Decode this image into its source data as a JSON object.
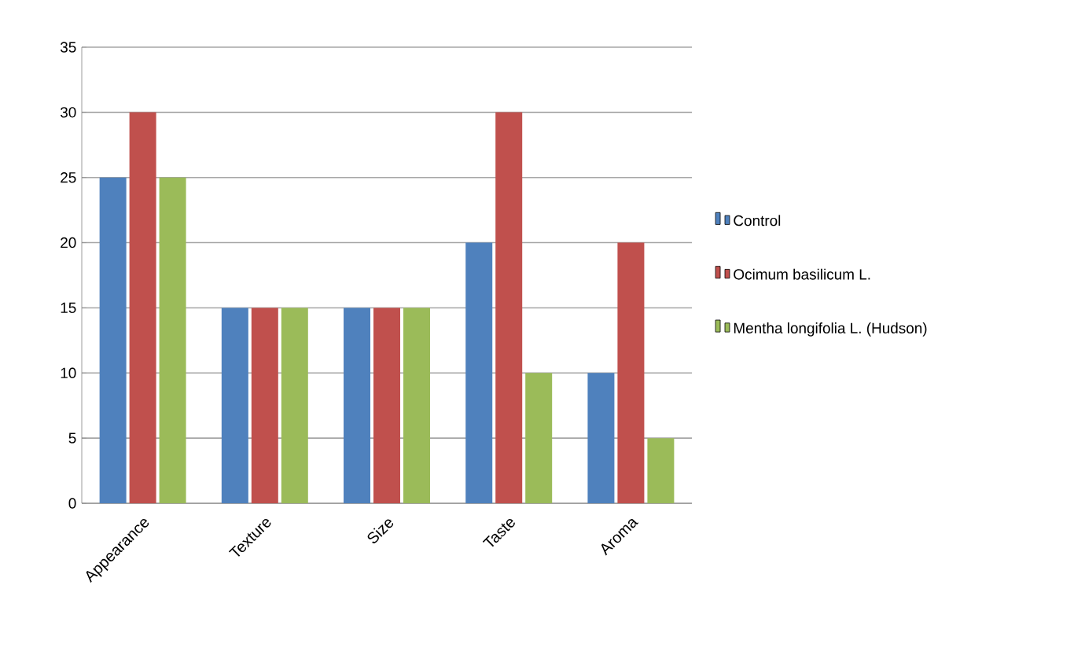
{
  "chart_data": {
    "type": "bar",
    "categories": [
      "Appearance",
      "Texture",
      "Size",
      "Taste",
      "Aroma"
    ],
    "series": [
      {
        "name": "Control",
        "color": "#4f81bd",
        "values": [
          25,
          15,
          15,
          20,
          10
        ]
      },
      {
        "name": "Ocimum basilicum L.",
        "color": "#c0504d",
        "values": [
          30,
          15,
          15,
          30,
          20
        ]
      },
      {
        "name": "Mentha longifolia L. (Hudson)",
        "color": "#9bbb59",
        "values": [
          25,
          15,
          15,
          10,
          5
        ]
      }
    ],
    "ylim": [
      0,
      35
    ],
    "yticks": [
      0,
      5,
      10,
      15,
      20,
      25,
      30,
      35
    ],
    "grid": "y",
    "legend": "right"
  }
}
